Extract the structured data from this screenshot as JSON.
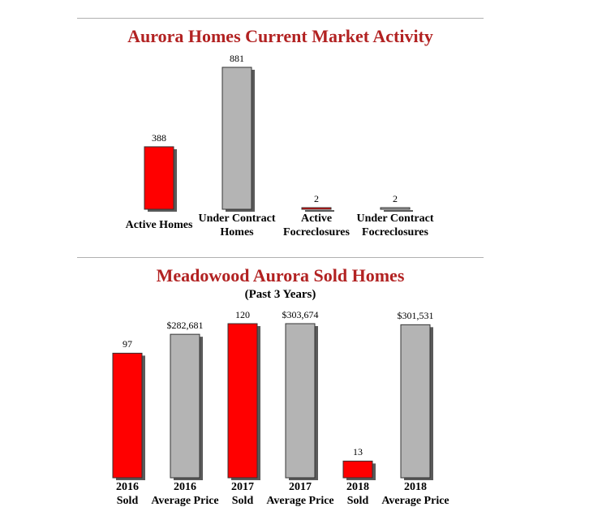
{
  "chart_data": [
    {
      "type": "bar",
      "title": "Aurora Homes Current Market Activity",
      "categories": [
        [
          "Active Homes"
        ],
        [
          "Under Contract",
          "Homes"
        ],
        [
          "Active",
          "Focreclosures"
        ],
        [
          "Under Contract",
          "Focreclosures"
        ]
      ],
      "values": [
        388,
        881,
        2,
        2
      ],
      "value_labels": [
        "388",
        "881",
        "2",
        "2"
      ],
      "bar_colors": [
        "#ff0000",
        "#b4b4b4",
        "#ff0000",
        "#b4b4b4"
      ],
      "ylim": [
        0,
        881
      ]
    },
    {
      "type": "bar",
      "title": "Meadowood Aurora Sold Homes",
      "subtitle": "(Past 3 Years)",
      "categories": [
        [
          "2016",
          "Sold"
        ],
        [
          "2016",
          "Average Price"
        ],
        [
          "2017",
          "Sold"
        ],
        [
          "2017",
          "Average Price"
        ],
        [
          "2018",
          "Sold"
        ],
        [
          "2018",
          "Average Price"
        ]
      ],
      "values": [
        97,
        282681,
        120,
        303674,
        13,
        301531
      ],
      "value_labels": [
        "97",
        "$282,681",
        "120",
        "$303,674",
        "13",
        "$301,531"
      ],
      "bar_colors": [
        "#ff0000",
        "#b4b4b4",
        "#ff0000",
        "#b4b4b4",
        "#ff0000",
        "#b4b4b4"
      ],
      "series_scales": {
        "Sold": [
          0,
          120
        ],
        "Average Price": [
          0,
          303674
        ]
      }
    }
  ]
}
